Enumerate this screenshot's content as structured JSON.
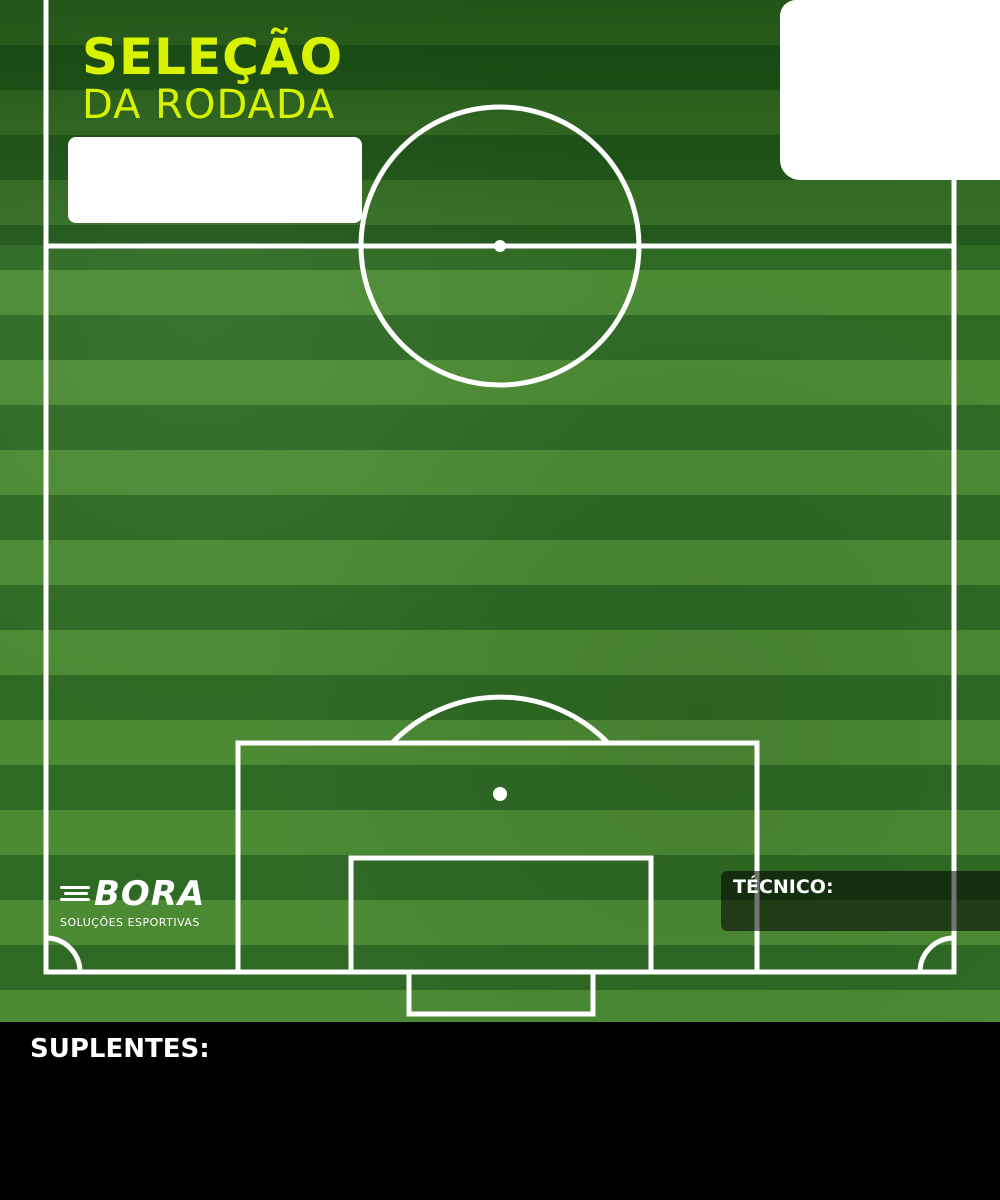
{
  "header": {
    "title_line1": "SELEÇÃO",
    "title_line2": "DA RODADA"
  },
  "logo": {
    "wordmark": "BORA",
    "tagline": "SOLUÇÕES ESPORTIVAS"
  },
  "coach": {
    "label": "TÉCNICO:"
  },
  "substitutes": {
    "label": "SUPLENTES:"
  },
  "colors": {
    "title_accent": "#d7f300",
    "pitch_light": "#4c8a34",
    "pitch_dark": "#2f6a25",
    "lines": "#ffffff",
    "footer": "#000000"
  }
}
